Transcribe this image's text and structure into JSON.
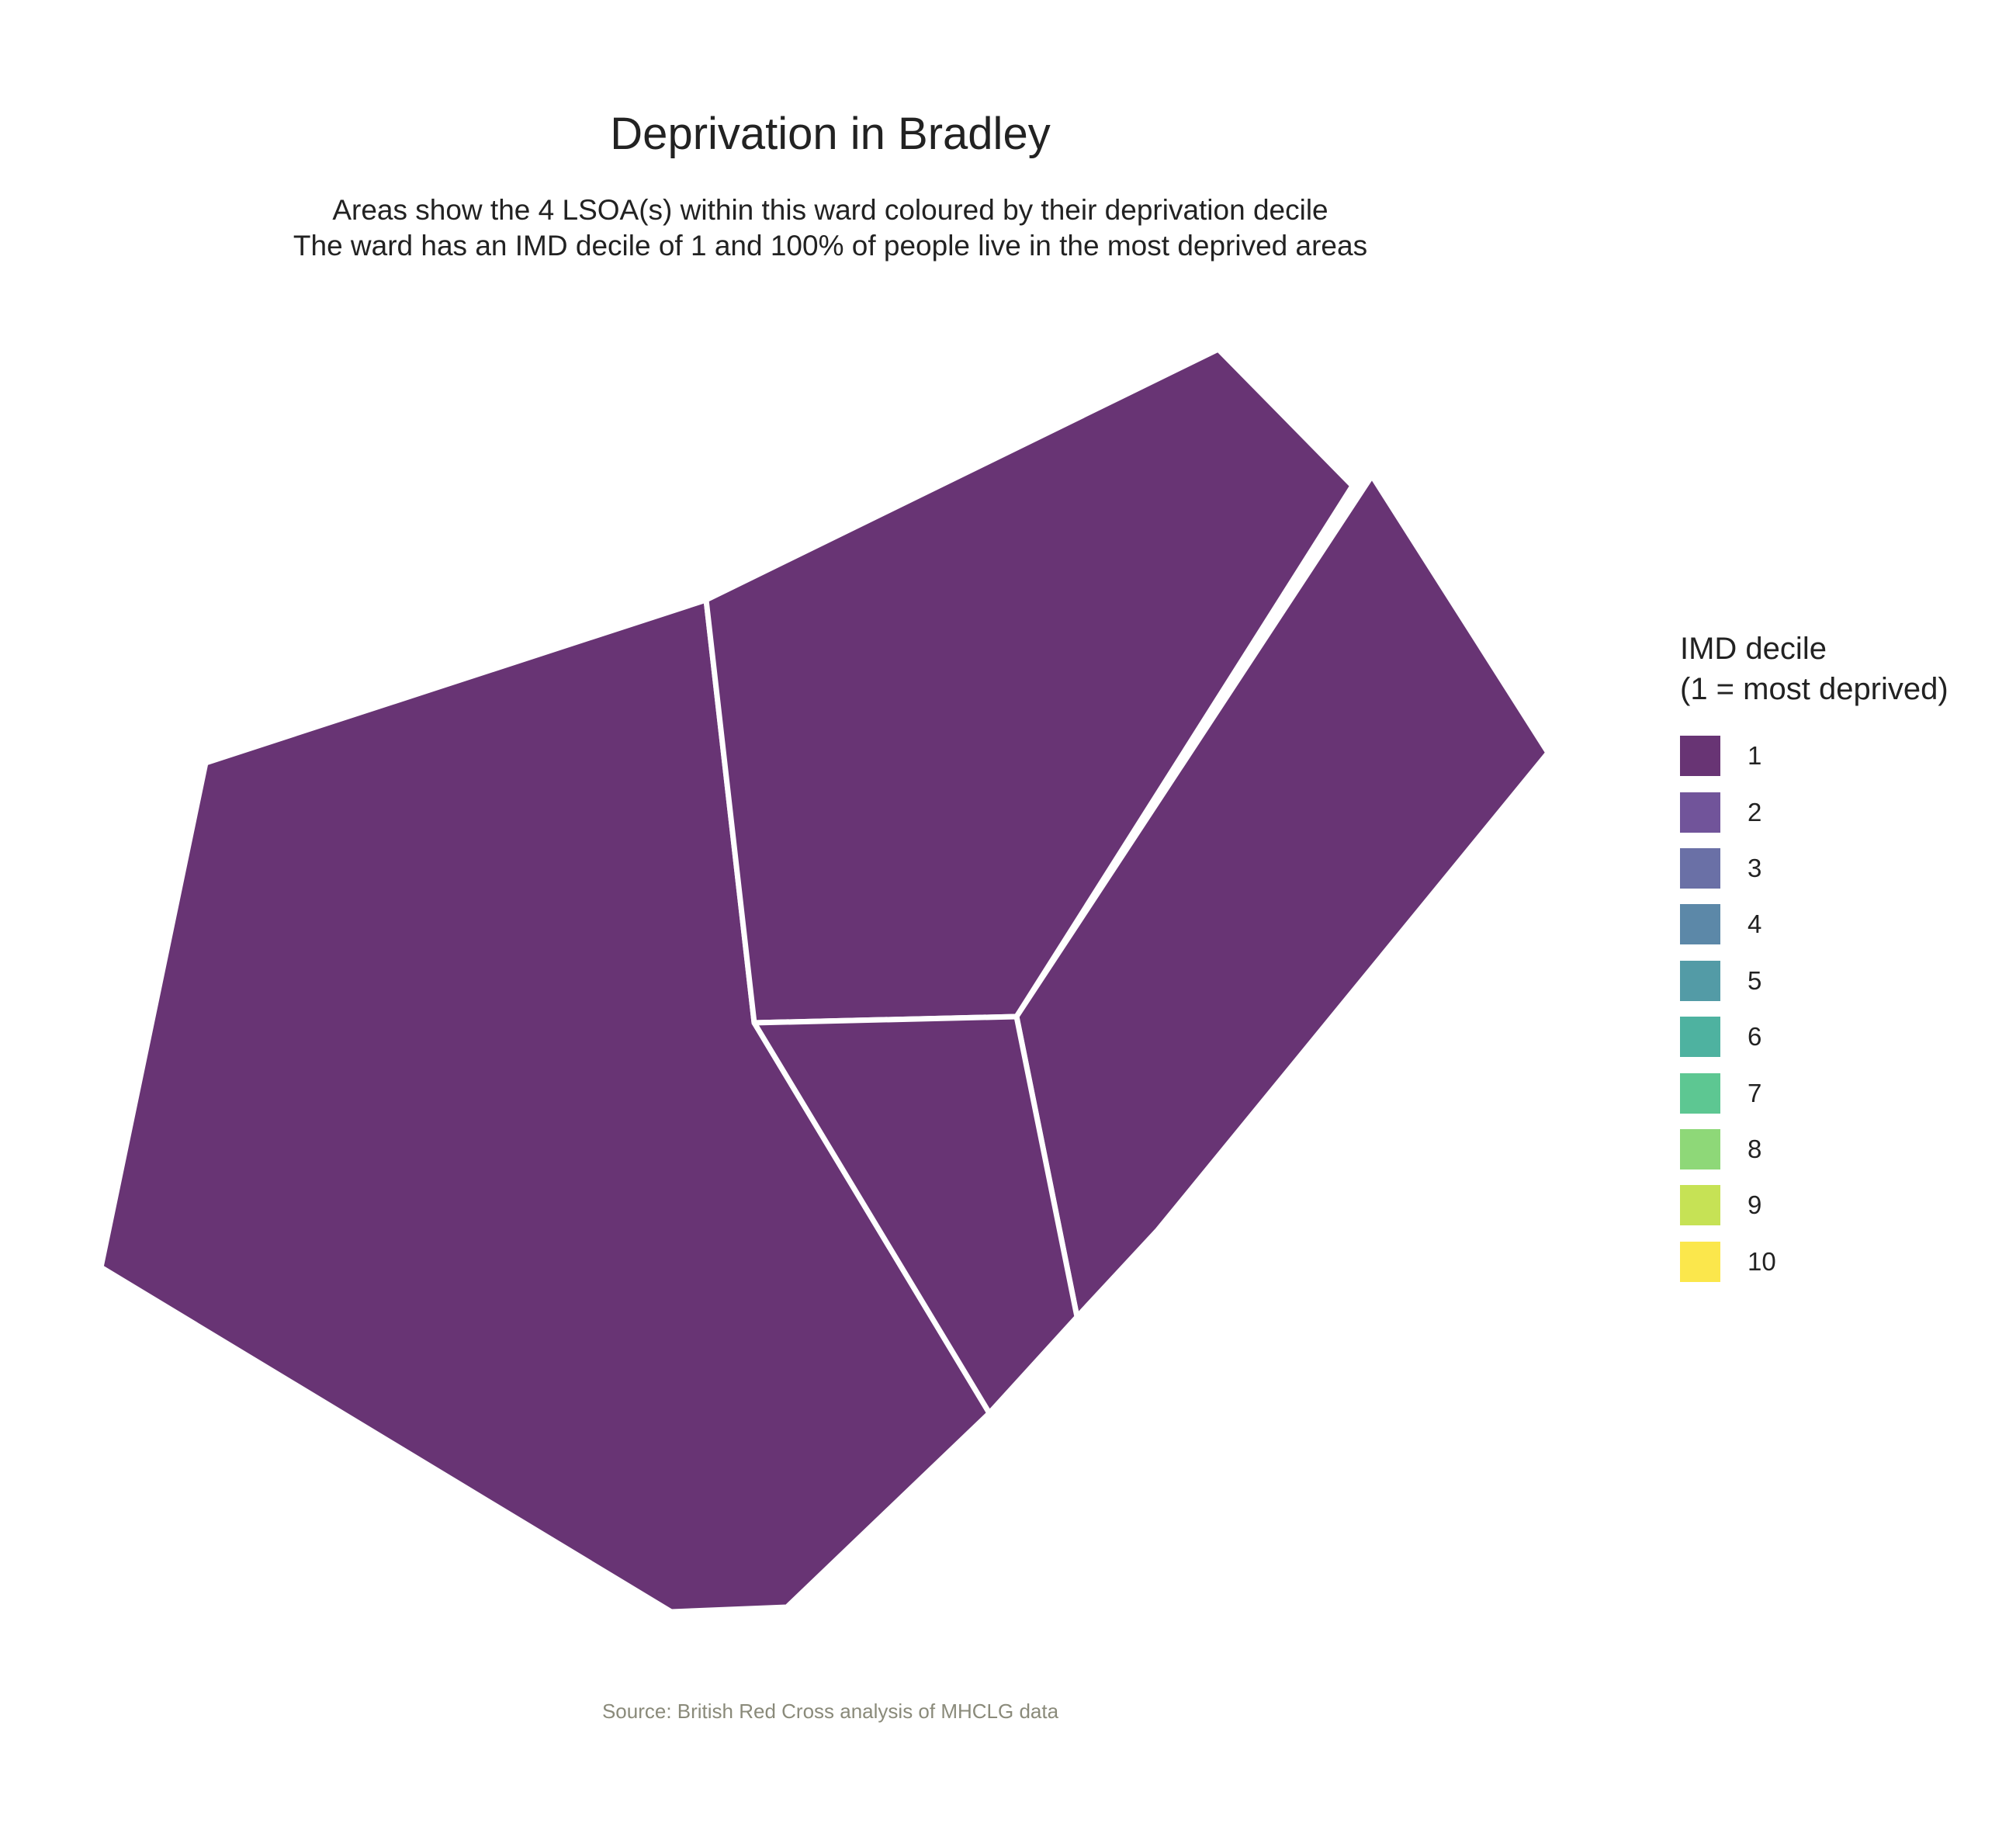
{
  "title": "Deprivation in Bradley",
  "subtitle": {
    "line1": "Areas show the 4 LSOA(s) within this ward coloured by their deprivation decile",
    "line2": "The ward has an IMD decile of 1 and 100% of people live in the most deprived areas"
  },
  "caption": "Source: British Red Cross analysis of MHCLG data",
  "legend": {
    "title_line1": "IMD decile",
    "title_line2": "(1 = most deprived)",
    "items": [
      {
        "label": "1",
        "color": "#683474"
      },
      {
        "label": "2",
        "color": "#71549a"
      },
      {
        "label": "3",
        "color": "#6a70a6"
      },
      {
        "label": "4",
        "color": "#5c88a8"
      },
      {
        "label": "5",
        "color": "#539ba6"
      },
      {
        "label": "6",
        "color": "#4eb2a0"
      },
      {
        "label": "7",
        "color": "#5dc792"
      },
      {
        "label": "8",
        "color": "#8ed878"
      },
      {
        "label": "9",
        "color": "#c6e255"
      },
      {
        "label": "10",
        "color": "#fbe74c"
      }
    ]
  },
  "map": {
    "areas": [
      {
        "name": "west",
        "decile": 1
      },
      {
        "name": "north",
        "decile": 1
      },
      {
        "name": "east",
        "decile": 1
      },
      {
        "name": "center",
        "decile": 1
      }
    ],
    "fill_color": "#683474",
    "border_color": "#ffffff"
  }
}
